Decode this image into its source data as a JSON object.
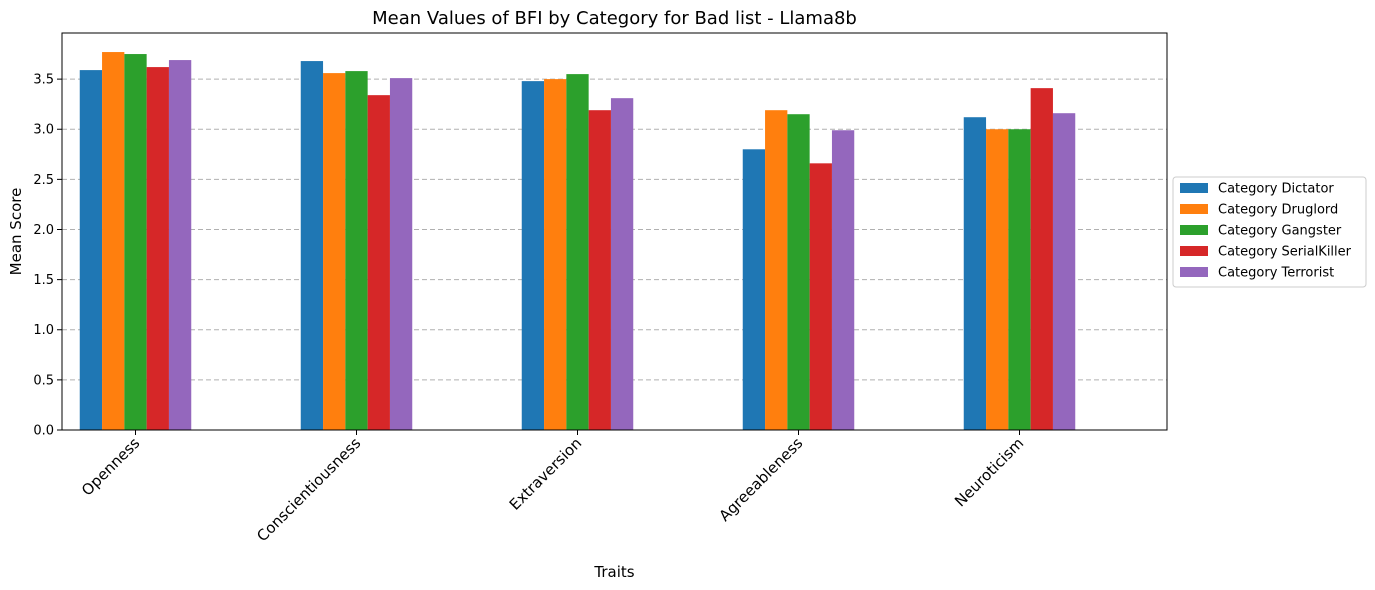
{
  "chart_data": {
    "type": "bar",
    "title": "Mean Values of BFI by Category for Bad list - Llama8b",
    "xlabel": "Traits",
    "ylabel": "Mean Score",
    "categories": [
      "Openness",
      "Conscientiousness",
      "Extraversion",
      "Agreeableness",
      "Neuroticism"
    ],
    "series": [
      {
        "name": "Category Dictator",
        "color": "#1f77b4",
        "values": [
          3.59,
          3.68,
          3.48,
          2.8,
          3.12
        ]
      },
      {
        "name": "Category Druglord",
        "color": "#ff7f0e",
        "values": [
          3.77,
          3.56,
          3.5,
          3.19,
          3.0
        ]
      },
      {
        "name": "Category Gangster",
        "color": "#2ca02c",
        "values": [
          3.75,
          3.58,
          3.55,
          3.15,
          3.0
        ]
      },
      {
        "name": "Category SerialKiller",
        "color": "#d62728",
        "values": [
          3.62,
          3.34,
          3.19,
          2.66,
          3.41
        ]
      },
      {
        "name": "Category Terrorist",
        "color": "#9467bd",
        "values": [
          3.69,
          3.51,
          3.31,
          2.99,
          3.16
        ]
      }
    ],
    "ylim": [
      0,
      3.96
    ],
    "yticks": [
      "0.0",
      "0.5",
      "1.0",
      "1.5",
      "2.0",
      "2.5",
      "3.0",
      "3.5"
    ],
    "grid": "y-dashed",
    "legend_position": "right-outside"
  }
}
